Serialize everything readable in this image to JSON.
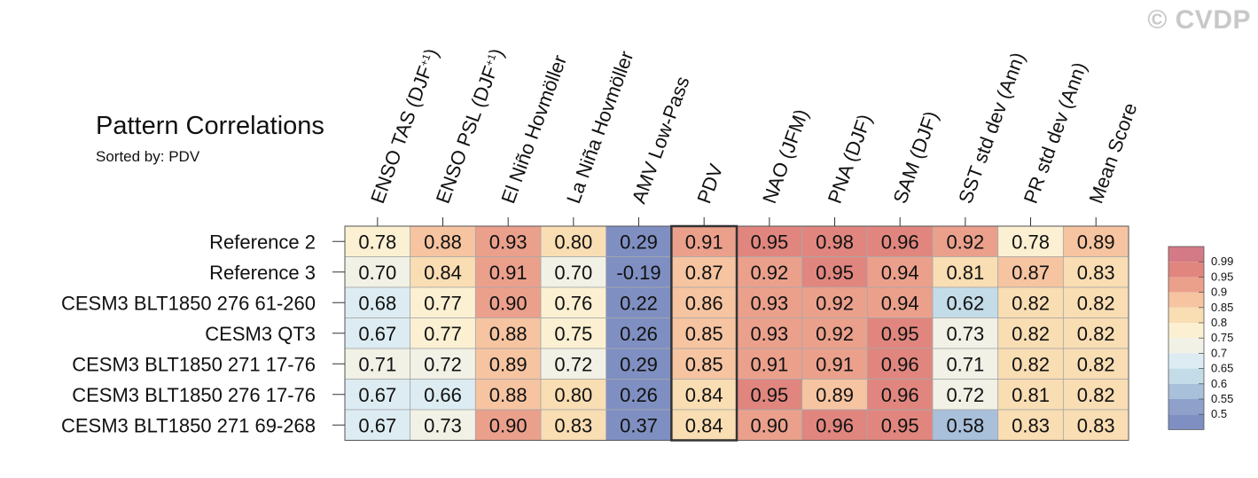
{
  "watermark": "© CVDP",
  "header": {
    "title": "Pattern Correlations",
    "subtitle": "Sorted by: PDV"
  },
  "chart_data": {
    "type": "heatmap",
    "columns": [
      "ENSO TAS (DJF+1)",
      "ENSO PSL (DJF+1)",
      "El Niño Hovmöller",
      "La Niña Hovmöller",
      "AMV Low-Pass",
      "PDV",
      "NAO (JFM)",
      "PNA (DJF)",
      "SAM (DJF)",
      "SST std dev (Ann)",
      "PR std dev (Ann)",
      "Mean Score"
    ],
    "rows": [
      "Reference 2",
      "Reference 3",
      "CESM3 BLT1850 276 61-260",
      "CESM3 QT3",
      "CESM3 BLT1850 271 17-76",
      "CESM3 BLT1850 276 17-76",
      "CESM3 BLT1850 271 69-268"
    ],
    "values": [
      [
        "0.78",
        "0.88",
        "0.93",
        "0.80",
        "0.29",
        "0.91",
        "0.95",
        "0.98",
        "0.96",
        "0.92",
        "0.78",
        "0.89"
      ],
      [
        "0.70",
        "0.84",
        "0.91",
        "0.70",
        "-0.19",
        "0.87",
        "0.92",
        "0.95",
        "0.94",
        "0.81",
        "0.87",
        "0.83"
      ],
      [
        "0.68",
        "0.77",
        "0.90",
        "0.76",
        "0.22",
        "0.86",
        "0.93",
        "0.92",
        "0.94",
        "0.62",
        "0.82",
        "0.82"
      ],
      [
        "0.67",
        "0.77",
        "0.88",
        "0.75",
        "0.26",
        "0.85",
        "0.93",
        "0.92",
        "0.95",
        "0.73",
        "0.82",
        "0.82"
      ],
      [
        "0.71",
        "0.72",
        "0.89",
        "0.72",
        "0.29",
        "0.85",
        "0.91",
        "0.91",
        "0.96",
        "0.71",
        "0.82",
        "0.82"
      ],
      [
        "0.67",
        "0.66",
        "0.88",
        "0.80",
        "0.26",
        "0.84",
        "0.95",
        "0.89",
        "0.96",
        "0.72",
        "0.81",
        "0.82"
      ],
      [
        "0.67",
        "0.73",
        "0.90",
        "0.83",
        "0.37",
        "0.84",
        "0.90",
        "0.96",
        "0.95",
        "0.58",
        "0.83",
        "0.83"
      ]
    ],
    "highlighted_column": "PDV",
    "colorbar": {
      "labels": [
        "0.99",
        "0.95",
        "0.9",
        "0.85",
        "0.8",
        "0.75",
        "0.7",
        "0.65",
        "0.6",
        "0.55",
        "0.5"
      ],
      "colors": [
        "#d47a86",
        "#e0867f",
        "#eba08c",
        "#f6c4a1",
        "#f9ddb3",
        "#fbf0d2",
        "#f1f1e6",
        "#dcecf2",
        "#c3dce8",
        "#a9c0da",
        "#8fa0cb",
        "#7f8fc2"
      ]
    },
    "color_scale": {
      "thresholds": [
        0.5,
        0.55,
        0.6,
        0.65,
        0.7,
        0.75,
        0.8,
        0.85,
        0.9,
        0.95,
        0.99
      ],
      "colors": [
        "#8fa0cb",
        "#a9c0da",
        "#c3dce8",
        "#dcecf2",
        "#f1f1e6",
        "#fbf0d2",
        "#f9ddb3",
        "#f6c4a1",
        "#eba08c",
        "#e0867f",
        "#d47a86"
      ]
    }
  }
}
